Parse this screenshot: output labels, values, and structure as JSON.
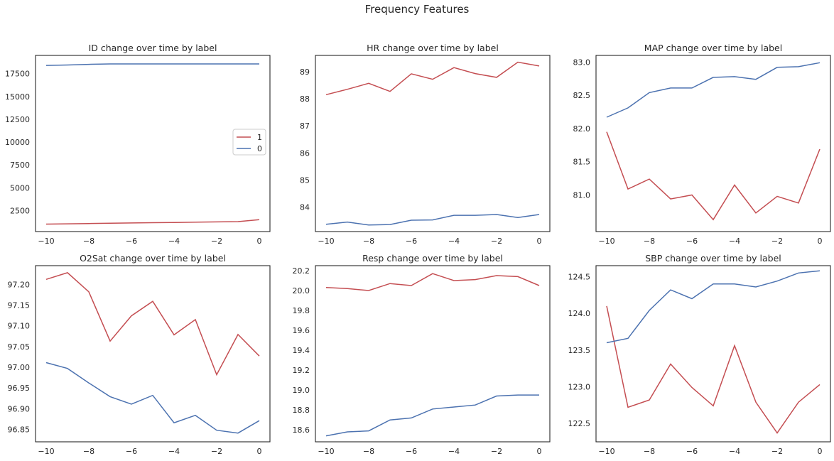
{
  "title": "Frequency Features",
  "colors": {
    "1": "#c44e52",
    "0": "#4c72b0"
  },
  "chart_data": [
    {
      "type": "line",
      "title": "ID change over time by label",
      "x": [
        -10,
        -9,
        -8,
        -7,
        -6,
        -5,
        -4,
        -3,
        -2,
        -1,
        0
      ],
      "xticks": [
        "-10",
        "-8",
        "-6",
        "-4",
        "-2",
        "0"
      ],
      "ylim": [
        200,
        19500
      ],
      "yticks": [
        "2500",
        "5000",
        "7500",
        "10000",
        "12500",
        "15000",
        "17500"
      ],
      "legend": {
        "placement": "center-right",
        "entries": [
          "1",
          "0"
        ]
      },
      "series": [
        {
          "name": "1",
          "values": [
            1020,
            1050,
            1080,
            1110,
            1140,
            1170,
            1200,
            1230,
            1260,
            1290,
            1500
          ]
        },
        {
          "name": "0",
          "values": [
            18400,
            18450,
            18520,
            18570,
            18570,
            18570,
            18570,
            18570,
            18570,
            18570,
            18570
          ]
        }
      ]
    },
    {
      "type": "line",
      "title": "HR change over time by label",
      "x": [
        -10,
        -9,
        -8,
        -7,
        -6,
        -5,
        -4,
        -3,
        -2,
        -1,
        0
      ],
      "xticks": [
        "-10",
        "-8",
        "-6",
        "-4",
        "-2",
        "0"
      ],
      "ylim": [
        83.1,
        89.6
      ],
      "yticks": [
        "84",
        "85",
        "86",
        "87",
        "88",
        "89"
      ],
      "series": [
        {
          "name": "1",
          "values": [
            88.15,
            88.35,
            88.57,
            88.27,
            88.92,
            88.72,
            89.15,
            88.93,
            88.79,
            89.35,
            89.21
          ]
        },
        {
          "name": "0",
          "values": [
            83.37,
            83.45,
            83.34,
            83.36,
            83.52,
            83.53,
            83.7,
            83.7,
            83.73,
            83.62,
            83.73
          ]
        }
      ]
    },
    {
      "type": "line",
      "title": "MAP change over time by label",
      "x": [
        -10,
        -9,
        -8,
        -7,
        -6,
        -5,
        -4,
        -3,
        -2,
        -1,
        0
      ],
      "xticks": [
        "-10",
        "-8",
        "-6",
        "-4",
        "-2",
        "0"
      ],
      "ylim": [
        80.45,
        83.1
      ],
      "yticks": [
        "81.0",
        "81.5",
        "82.0",
        "82.5",
        "83.0"
      ],
      "series": [
        {
          "name": "1",
          "values": [
            81.95,
            81.09,
            81.24,
            80.94,
            81.0,
            80.63,
            81.15,
            80.73,
            80.98,
            80.88,
            81.69
          ]
        },
        {
          "name": "0",
          "values": [
            82.17,
            82.31,
            82.54,
            82.61,
            82.61,
            82.77,
            82.78,
            82.74,
            82.92,
            82.93,
            82.99
          ]
        }
      ]
    },
    {
      "type": "line",
      "title": "O2Sat change over time by label",
      "x": [
        -10,
        -9,
        -8,
        -7,
        -6,
        -5,
        -4,
        -3,
        -2,
        -1,
        0
      ],
      "xticks": [
        "-10",
        "-8",
        "-6",
        "-4",
        "-2",
        "0"
      ],
      "ylim": [
        96.82,
        97.245
      ],
      "yticks": [
        "96.85",
        "96.90",
        "96.95",
        "97.00",
        "97.05",
        "97.10",
        "97.15",
        "97.20"
      ],
      "series": [
        {
          "name": "1",
          "values": [
            97.212,
            97.228,
            97.182,
            97.063,
            97.124,
            97.159,
            97.078,
            97.115,
            96.982,
            97.079,
            97.027
          ]
        },
        {
          "name": "0",
          "values": [
            97.011,
            96.997,
            96.962,
            96.929,
            96.911,
            96.932,
            96.866,
            96.884,
            96.848,
            96.841,
            96.871
          ]
        }
      ]
    },
    {
      "type": "line",
      "title": "Resp change over time by label",
      "x": [
        -10,
        -9,
        -8,
        -7,
        -6,
        -5,
        -4,
        -3,
        -2,
        -1,
        0
      ],
      "xticks": [
        "-10",
        "-8",
        "-6",
        "-4",
        "-2",
        "0"
      ],
      "ylim": [
        18.48,
        20.25
      ],
      "yticks": [
        "18.6",
        "18.8",
        "19.0",
        "19.2",
        "19.4",
        "19.6",
        "19.8",
        "20.0",
        "20.2"
      ],
      "series": [
        {
          "name": "1",
          "values": [
            20.03,
            20.02,
            20.0,
            20.07,
            20.05,
            20.17,
            20.1,
            20.11,
            20.15,
            20.14,
            20.05
          ]
        },
        {
          "name": "0",
          "values": [
            18.54,
            18.58,
            18.59,
            18.7,
            18.72,
            18.81,
            18.83,
            18.85,
            18.94,
            18.95,
            18.95
          ]
        }
      ]
    },
    {
      "type": "line",
      "title": "SBP change over time by label",
      "x": [
        -10,
        -9,
        -8,
        -7,
        -6,
        -5,
        -4,
        -3,
        -2,
        -1,
        0
      ],
      "xticks": [
        "-10",
        "-8",
        "-6",
        "-4",
        "-2",
        "0"
      ],
      "ylim": [
        122.25,
        124.65
      ],
      "yticks": [
        "122.5",
        "123.0",
        "123.5",
        "124.0",
        "124.5"
      ],
      "series": [
        {
          "name": "1",
          "values": [
            124.1,
            122.72,
            122.82,
            123.31,
            122.99,
            122.74,
            123.56,
            122.79,
            122.37,
            122.79,
            123.03
          ]
        },
        {
          "name": "0",
          "values": [
            123.6,
            123.66,
            124.04,
            124.32,
            124.2,
            124.4,
            124.4,
            124.36,
            124.44,
            124.55,
            124.58
          ]
        }
      ]
    }
  ]
}
